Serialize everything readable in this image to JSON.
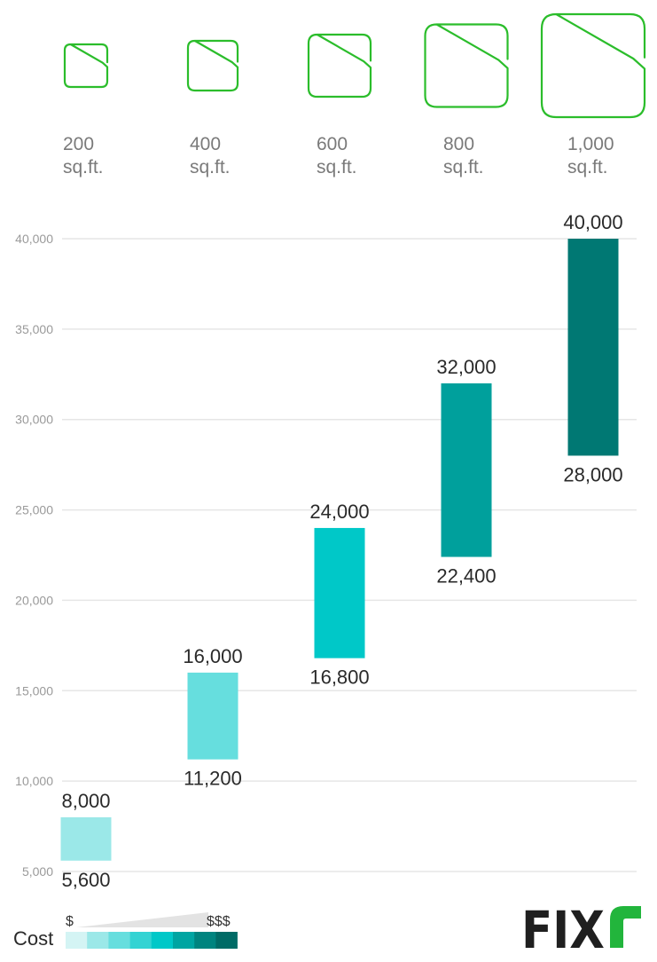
{
  "chart_data": {
    "type": "bar",
    "subtype": "floating-range",
    "categories": [
      {
        "size": "200",
        "unit": "sq.ft."
      },
      {
        "size": "400",
        "unit": "sq.ft."
      },
      {
        "size": "600",
        "unit": "sq.ft."
      },
      {
        "size": "800",
        "unit": "sq.ft."
      },
      {
        "size": "1,000",
        "unit": "sq.ft."
      }
    ],
    "ranges": [
      {
        "low": 5600,
        "high": 8000,
        "low_label": "5,600",
        "high_label": "8,000",
        "color": "#9be8e8"
      },
      {
        "low": 11200,
        "high": 16000,
        "low_label": "11,200",
        "high_label": "16,000",
        "color": "#66dede"
      },
      {
        "low": 16800,
        "high": 24000,
        "low_label": "16,800",
        "high_label": "24,000",
        "color": "#00c8c8"
      },
      {
        "low": 22400,
        "high": 32000,
        "low_label": "22,400",
        "high_label": "32,000",
        "color": "#00a09c"
      },
      {
        "low": 28000,
        "high": 40000,
        "low_label": "28,000",
        "high_label": "40,000",
        "color": "#007873"
      }
    ],
    "ylim": [
      5000,
      40000
    ],
    "yticks": [
      {
        "value": 5000,
        "label": "5,000"
      },
      {
        "value": 10000,
        "label": "10,000"
      },
      {
        "value": 15000,
        "label": "15,000"
      },
      {
        "value": 20000,
        "label": "20,000"
      },
      {
        "value": 25000,
        "label": "25,000"
      },
      {
        "value": 30000,
        "label": "30,000"
      },
      {
        "value": 35000,
        "label": "35,000"
      },
      {
        "value": 40000,
        "label": "40,000"
      }
    ],
    "grid": true
  },
  "legend": {
    "title": "Cost",
    "low_label": "$",
    "high_label": "$$$",
    "swatches": [
      "#d4f4f4",
      "#9be8e8",
      "#66dede",
      "#33d3d3",
      "#00c8c8",
      "#00a5a2",
      "#00847f",
      "#006b66"
    ]
  },
  "colors": {
    "icon_stroke": "#2bbd2b",
    "grid": "#e6e6e6",
    "legend_wedge": "#e3e3e3",
    "logo_dark": "#1f1f1f",
    "logo_green": "#22b53c"
  },
  "logo": {
    "text": "FIX",
    "mark": "r"
  }
}
